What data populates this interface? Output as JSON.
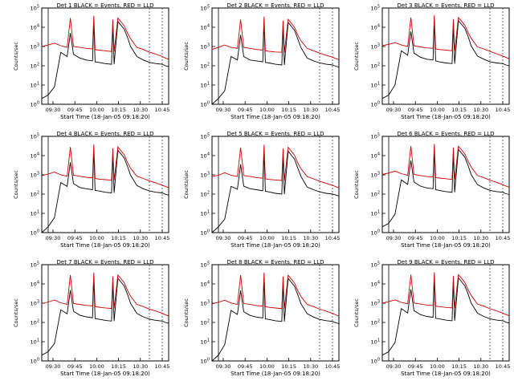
{
  "colors": {
    "events": "#000000",
    "lld": "#cc0000",
    "frame": "#000000"
  },
  "shared": {
    "xlabel": "Start Time (18-Jan-05 09:18:20)",
    "ylabel": "Counts/sec",
    "x_ticks": [
      "09:30",
      "09:45",
      "10:00",
      "10:15",
      "10:30",
      "10:45"
    ],
    "y_ticks": [
      "10^0",
      "10^1",
      "10^2",
      "10^3",
      "10^4",
      "10^5"
    ]
  },
  "chart_data": [
    {
      "type": "line",
      "title": "Det 1 BLACK = Events, RED = LLD",
      "xlabel": "Start Time (18-Jan-05 09:18:20)",
      "ylabel": "Counts/sec",
      "y_scale": "log",
      "ylim": [
        1,
        100000
      ],
      "x_ticks": [
        "09:30",
        "09:45",
        "10:00",
        "10:15",
        "10:30",
        "10:45"
      ],
      "y_ticks": [
        "10^0",
        "10^1",
        "10^2",
        "10^3",
        "10^4",
        "10^5"
      ],
      "x": [
        0,
        10,
        20,
        30,
        40,
        45,
        50,
        60,
        70,
        80,
        82,
        84,
        90,
        100,
        110,
        112,
        114,
        120,
        130,
        135,
        140,
        150,
        160,
        170,
        180,
        190,
        195,
        200
      ],
      "series": [
        {
          "name": "Events",
          "values": [
            2,
            3,
            8,
            500,
            300,
            5000,
            400,
            250,
            200,
            180,
            20000,
            160,
            150,
            130,
            120,
            15000,
            120,
            20000,
            8000,
            3000,
            1000,
            300,
            200,
            150,
            130,
            120,
            100,
            90
          ]
        },
        {
          "name": "LLD",
          "values": [
            1000,
            1200,
            1500,
            1100,
            900,
            30000,
            1000,
            900,
            800,
            750,
            40000,
            700,
            650,
            600,
            550,
            25000,
            550,
            30000,
            12000,
            5000,
            2500,
            900,
            700,
            500,
            400,
            300,
            250,
            220
          ]
        }
      ]
    },
    {
      "type": "line",
      "title": "Det 2 BLACK = Events, RED = LLD",
      "xlabel": "Start Time (18-Jan-05 09:18:20)",
      "ylabel": "Counts/sec",
      "y_scale": "log",
      "ylim": [
        1,
        100000
      ],
      "x_ticks": [
        "09:30",
        "09:45",
        "10:00",
        "10:15",
        "10:30",
        "10:45"
      ],
      "y_ticks": [
        "10^0",
        "10^1",
        "10^2",
        "10^3",
        "10^4",
        "10^5"
      ],
      "x": [
        0,
        10,
        20,
        30,
        40,
        45,
        50,
        60,
        70,
        80,
        82,
        84,
        90,
        100,
        110,
        112,
        114,
        120,
        130,
        135,
        140,
        150,
        160,
        170,
        180,
        190,
        195,
        200
      ],
      "series": [
        {
          "name": "Events",
          "values": [
            1,
            2,
            5,
            300,
            200,
            4000,
            300,
            200,
            180,
            160,
            18000,
            150,
            140,
            120,
            110,
            14000,
            110,
            18000,
            7000,
            2500,
            900,
            250,
            180,
            140,
            120,
            110,
            95,
            85
          ]
        },
        {
          "name": "LLD",
          "values": [
            700,
            900,
            1200,
            900,
            800,
            25000,
            900,
            800,
            700,
            650,
            35000,
            600,
            560,
            520,
            500,
            22000,
            500,
            26000,
            10000,
            4000,
            2000,
            800,
            600,
            450,
            350,
            280,
            240,
            210
          ]
        }
      ]
    },
    {
      "type": "line",
      "title": "Det 3 BLACK = Events, RED = LLD",
      "xlabel": "Start Time (18-Jan-05 09:18:20)",
      "ylabel": "Counts/sec",
      "y_scale": "log",
      "ylim": [
        1,
        100000
      ],
      "x_ticks": [
        "09:30",
        "09:45",
        "10:00",
        "10:15",
        "10:30",
        "10:45"
      ],
      "y_ticks": [
        "10^0",
        "10^1",
        "10^2",
        "10^3",
        "10^4",
        "10^5"
      ],
      "x": [
        0,
        10,
        20,
        30,
        40,
        45,
        50,
        60,
        70,
        80,
        82,
        84,
        90,
        100,
        110,
        112,
        114,
        120,
        130,
        135,
        140,
        150,
        160,
        170,
        180,
        190,
        195,
        200
      ],
      "series": [
        {
          "name": "Events",
          "values": [
            2,
            3,
            10,
            600,
            350,
            6000,
            450,
            280,
            220,
            200,
            22000,
            180,
            160,
            140,
            130,
            16000,
            130,
            22000,
            9000,
            3500,
            1100,
            320,
            220,
            160,
            140,
            130,
            110,
            100
          ]
        },
        {
          "name": "LLD",
          "values": [
            1100,
            1300,
            1600,
            1200,
            1000,
            32000,
            1100,
            950,
            850,
            800,
            42000,
            750,
            700,
            650,
            600,
            27000,
            600,
            32000,
            13000,
            5500,
            2700,
            950,
            750,
            550,
            420,
            320,
            270,
            230
          ]
        }
      ]
    },
    {
      "type": "line",
      "title": "Det 4 BLACK = Events, RED = LLD",
      "xlabel": "Start Time (18-Jan-05 09:18:20)",
      "ylabel": "Counts/sec",
      "y_scale": "log",
      "ylim": [
        1,
        100000
      ],
      "x_ticks": [
        "09:30",
        "09:45",
        "10:00",
        "10:15",
        "10:30",
        "10:45"
      ],
      "y_ticks": [
        "10^0",
        "10^1",
        "10^2",
        "10^3",
        "10^4",
        "10^5"
      ],
      "x": [
        0,
        10,
        20,
        30,
        40,
        45,
        50,
        60,
        70,
        80,
        82,
        84,
        90,
        100,
        110,
        112,
        114,
        120,
        130,
        135,
        140,
        150,
        160,
        170,
        180,
        190,
        195,
        200
      ],
      "series": [
        {
          "name": "Events",
          "values": [
            1,
            2,
            6,
            400,
            250,
            4500,
            350,
            220,
            190,
            170,
            19000,
            155,
            145,
            125,
            115,
            14500,
            115,
            19000,
            7500,
            2800,
            950,
            280,
            190,
            145,
            125,
            115,
            98,
            88
          ]
        },
        {
          "name": "LLD",
          "values": [
            900,
            1100,
            1400,
            1000,
            850,
            28000,
            950,
            850,
            750,
            700,
            38000,
            650,
            600,
            560,
            520,
            24000,
            520,
            28000,
            11000,
            4500,
            2200,
            850,
            650,
            480,
            380,
            290,
            250,
            215
          ]
        }
      ]
    },
    {
      "type": "line",
      "title": "Det 5 BLACK = Events, RED = LLD",
      "xlabel": "Start Time (18-Jan-05 09:18:20)",
      "ylabel": "Counts/sec",
      "y_scale": "log",
      "ylim": [
        1,
        100000
      ],
      "x_ticks": [
        "09:30",
        "09:45",
        "10:00",
        "10:15",
        "10:30",
        "10:45"
      ],
      "y_ticks": [
        "10^0",
        "10^1",
        "10^2",
        "10^3",
        "10^4",
        "10^5"
      ],
      "x": [
        0,
        10,
        20,
        30,
        40,
        45,
        50,
        60,
        70,
        80,
        82,
        84,
        90,
        100,
        110,
        112,
        114,
        120,
        130,
        135,
        140,
        150,
        160,
        170,
        180,
        190,
        195,
        200
      ],
      "series": [
        {
          "name": "Events",
          "values": [
            1,
            2,
            5,
            250,
            180,
            3500,
            260,
            190,
            170,
            150,
            16000,
            140,
            130,
            110,
            100,
            13000,
            100,
            17000,
            6500,
            2300,
            850,
            230,
            170,
            130,
            110,
            100,
            90,
            80
          ]
        },
        {
          "name": "LLD",
          "values": [
            800,
            950,
            1300,
            950,
            820,
            26000,
            930,
            830,
            720,
            670,
            36000,
            620,
            580,
            540,
            510,
            23000,
            510,
            27000,
            10500,
            4200,
            2100,
            820,
            620,
            460,
            360,
            285,
            245,
            212
          ]
        }
      ]
    },
    {
      "type": "line",
      "title": "Det 6 BLACK = Events, RED = LLD",
      "xlabel": "Start Time (18-Jan-05 09:18:20)",
      "ylabel": "Counts/sec",
      "y_scale": "log",
      "ylim": [
        1,
        100000
      ],
      "x_ticks": [
        "09:30",
        "09:45",
        "10:00",
        "10:15",
        "10:30",
        "10:45"
      ],
      "y_ticks": [
        "10^0",
        "10^1",
        "10^2",
        "10^3",
        "10^4",
        "10^5"
      ],
      "x": [
        0,
        10,
        20,
        30,
        40,
        45,
        50,
        60,
        70,
        80,
        82,
        84,
        90,
        100,
        110,
        112,
        114,
        120,
        130,
        135,
        140,
        150,
        160,
        170,
        180,
        190,
        195,
        200
      ],
      "series": [
        {
          "name": "Events",
          "values": [
            2,
            3,
            9,
            550,
            320,
            5500,
            420,
            260,
            210,
            190,
            21000,
            170,
            155,
            135,
            125,
            15500,
            125,
            21000,
            8500,
            3200,
            1050,
            310,
            210,
            155,
            135,
            125,
            105,
            95
          ]
        },
        {
          "name": "LLD",
          "values": [
            1050,
            1250,
            1550,
            1150,
            950,
            31000,
            1050,
            920,
            820,
            780,
            41000,
            730,
            680,
            630,
            580,
            26000,
            580,
            31000,
            12500,
            5200,
            2600,
            920,
            720,
            520,
            410,
            310,
            260,
            225
          ]
        }
      ]
    },
    {
      "type": "line",
      "title": "Det 7 BLACK = Events, RED = LLD",
      "xlabel": "Start Time (18-Jan-05 09:18:20)",
      "ylabel": "Counts/sec",
      "y_scale": "log",
      "ylim": [
        1,
        100000
      ],
      "x_ticks": [
        "09:30",
        "09:45",
        "10:00",
        "10:15",
        "10:30",
        "10:45"
      ],
      "y_ticks": [
        "10^0",
        "10^1",
        "10^2",
        "10^3",
        "10^4",
        "10^5"
      ],
      "x": [
        0,
        10,
        20,
        30,
        40,
        45,
        50,
        60,
        70,
        80,
        82,
        84,
        90,
        100,
        110,
        112,
        114,
        120,
        130,
        135,
        140,
        150,
        160,
        170,
        180,
        190,
        195,
        200
      ],
      "series": [
        {
          "name": "Events",
          "values": [
            2,
            3,
            8,
            450,
            280,
            4800,
            380,
            240,
            195,
            175,
            19500,
            158,
            148,
            128,
            118,
            14800,
            118,
            19500,
            7800,
            2900,
            980,
            290,
            195,
            148,
            128,
            118,
            100,
            90
          ]
        },
        {
          "name": "LLD",
          "values": [
            950,
            1150,
            1450,
            1050,
            870,
            29000,
            970,
            870,
            770,
            720,
            39000,
            670,
            620,
            570,
            530,
            24500,
            530,
            29000,
            11500,
            4700,
            2300,
            870,
            670,
            490,
            390,
            295,
            252,
            218
          ]
        }
      ]
    },
    {
      "type": "line",
      "title": "Det 8 BLACK = Events, RED = LLD",
      "xlabel": "Start Time (18-Jan-05 09:18:20)",
      "ylabel": "Counts/sec",
      "y_scale": "log",
      "ylim": [
        1,
        100000
      ],
      "x_ticks": [
        "09:30",
        "09:45",
        "10:00",
        "10:15",
        "10:30",
        "10:45"
      ],
      "y_ticks": [
        "10^0",
        "10^1",
        "10^2",
        "10^3",
        "10^4",
        "10^5"
      ],
      "x": [
        0,
        10,
        20,
        30,
        40,
        45,
        50,
        60,
        70,
        80,
        82,
        84,
        90,
        100,
        110,
        112,
        114,
        120,
        130,
        135,
        140,
        150,
        160,
        170,
        180,
        190,
        195,
        200
      ],
      "series": [
        {
          "name": "Events",
          "values": [
            1,
            2,
            7,
            420,
            260,
            4600,
            360,
            230,
            190,
            170,
            19000,
            152,
            142,
            122,
            112,
            14200,
            112,
            19200,
            7600,
            2850,
            960,
            285,
            190,
            143,
            123,
            113,
            97,
            87
          ]
        },
        {
          "name": "LLD",
          "values": [
            920,
            1120,
            1420,
            1020,
            860,
            28500,
            960,
            860,
            760,
            710,
            38500,
            660,
            610,
            565,
            525,
            24200,
            525,
            28500,
            11200,
            4600,
            2250,
            860,
            660,
            485,
            385,
            292,
            248,
            216
          ]
        }
      ]
    },
    {
      "type": "line",
      "title": "Det 9 BLACK = Events, RED = LLD",
      "xlabel": "Start Time (18-Jan-05 09:18:20)",
      "ylabel": "Counts/sec",
      "y_scale": "log",
      "ylim": [
        1,
        100000
      ],
      "x_ticks": [
        "09:30",
        "09:45",
        "10:00",
        "10:15",
        "10:30",
        "10:45"
      ],
      "y_ticks": [
        "10^0",
        "10^1",
        "10^2",
        "10^3",
        "10^4",
        "10^5"
      ],
      "x": [
        0,
        10,
        20,
        30,
        40,
        45,
        50,
        60,
        70,
        80,
        82,
        84,
        90,
        100,
        110,
        112,
        114,
        120,
        130,
        135,
        140,
        150,
        160,
        170,
        180,
        190,
        195,
        200
      ],
      "series": [
        {
          "name": "Events",
          "values": [
            2,
            3,
            9,
            520,
            310,
            5200,
            410,
            255,
            205,
            185,
            20500,
            165,
            152,
            132,
            122,
            15200,
            122,
            20500,
            8200,
            3100,
            1020,
            305,
            205,
            152,
            132,
            122,
            103,
            93
          ]
        },
        {
          "name": "LLD",
          "values": [
            1000,
            1200,
            1500,
            1100,
            920,
            30500,
            1020,
            900,
            800,
            760,
            40500,
            710,
            660,
            610,
            570,
            25500,
            570,
            30500,
            12200,
            5100,
            2550,
            900,
            700,
            510,
            400,
            305,
            258,
            222
          ]
        }
      ]
    }
  ]
}
